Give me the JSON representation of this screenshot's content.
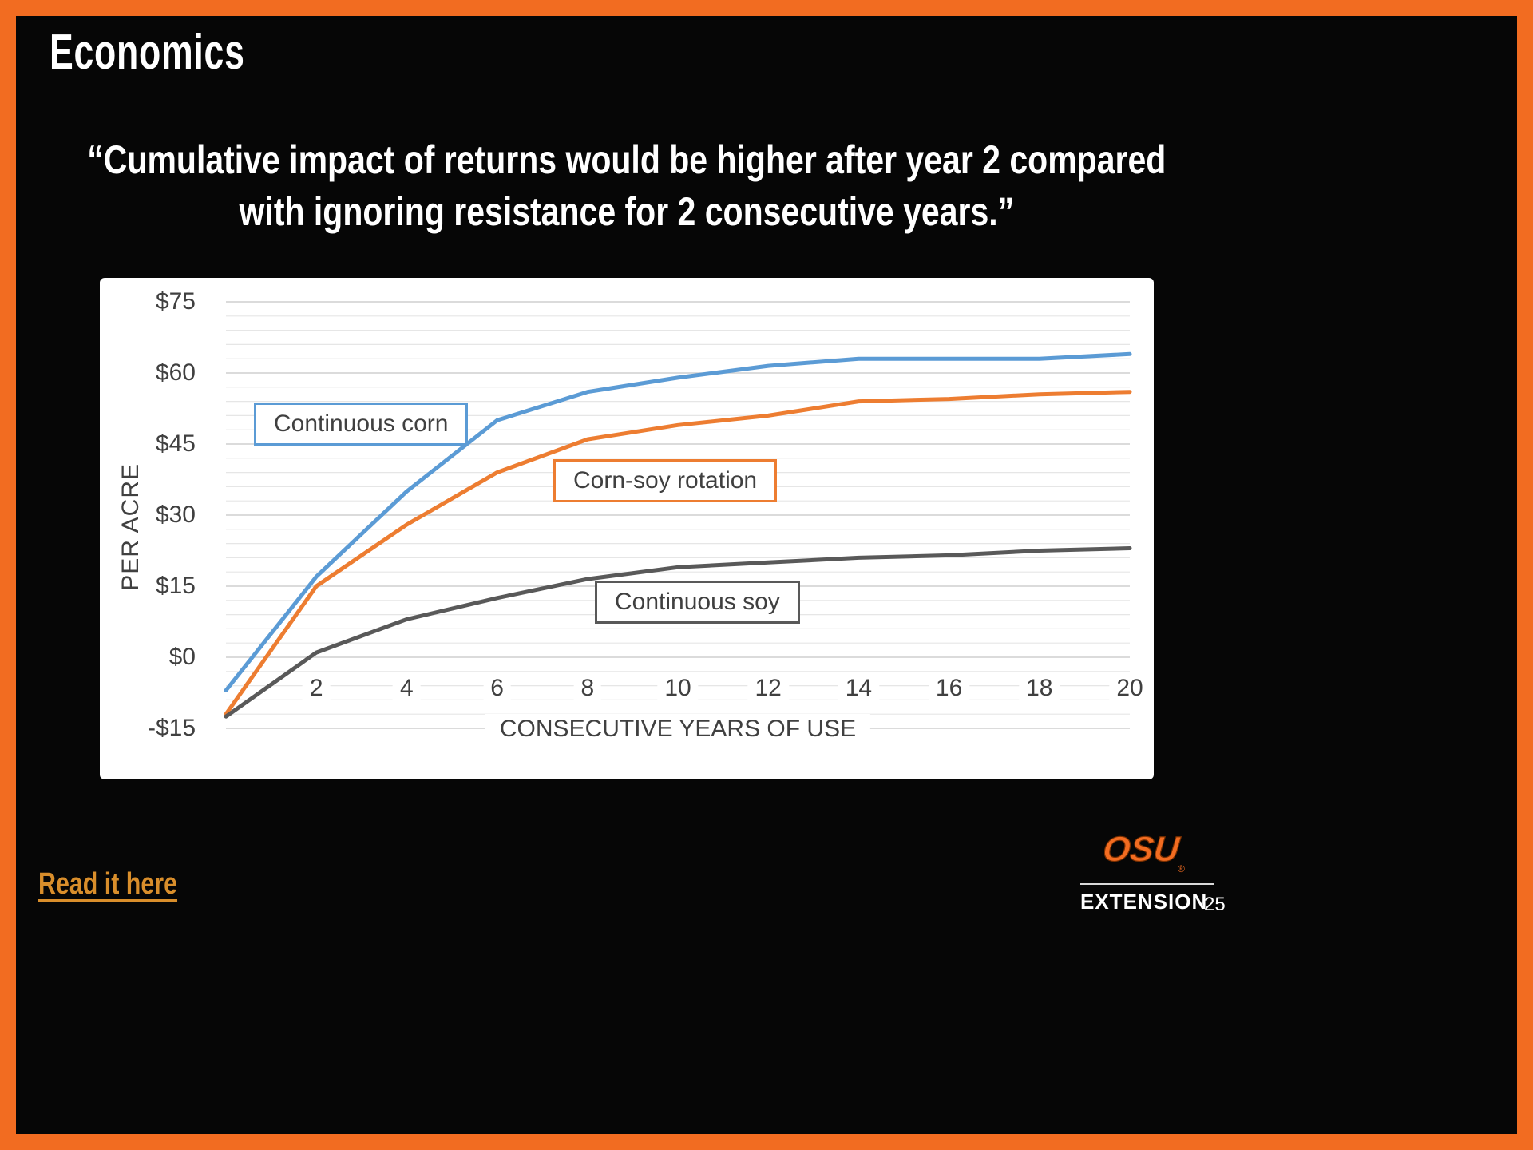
{
  "slide": {
    "title": "Economics",
    "quote": {
      "line1": "“Cumulative impact of returns would be higher after year 2 compared",
      "line2": "with ignoring resistance for 2 consecutive years.”"
    },
    "link_label": "Read it here",
    "footer": {
      "logo_text": "OSU",
      "org_label": "EXTENSION",
      "page_number": "25"
    }
  },
  "colors": {
    "border_orange": "#F26C21",
    "link_orange": "#D98E2B",
    "axis_text": "#404040",
    "gridline_major": "#CFCFCF",
    "gridline_minor": "#E6E6E6",
    "series_corn_blue": "#5B9BD5",
    "series_rotation_orange": "#ED7D31",
    "series_soy_gray": "#595959"
  },
  "chart_data": {
    "type": "line",
    "title": "",
    "xlabel": "CONSECUTIVE YEARS OF USE",
    "ylabel": "PER ACRE",
    "xlim": [
      0,
      20
    ],
    "ylim": [
      -15,
      75
    ],
    "grid": true,
    "legend_position": "boxed-labels-inside-plot",
    "x": [
      0,
      2,
      4,
      6,
      8,
      10,
      12,
      14,
      16,
      18,
      20
    ],
    "x_ticks": [
      2,
      4,
      6,
      8,
      10,
      12,
      14,
      16,
      18,
      20
    ],
    "y_ticks": [
      "$75",
      "$60",
      "$45",
      "$30",
      "$15",
      "$0",
      "-$15"
    ],
    "y_tick_values": [
      75,
      60,
      45,
      30,
      15,
      0,
      -15
    ],
    "series": [
      {
        "name": "Continuous corn",
        "color": "#5B9BD5",
        "values": [
          -7,
          17,
          35,
          50,
          56,
          59,
          61.5,
          63,
          63,
          63,
          64
        ]
      },
      {
        "name": "Corn-soy rotation",
        "color": "#ED7D31",
        "values": [
          -12,
          15,
          28,
          39,
          46,
          49,
          51,
          54,
          54.5,
          55.5,
          56
        ]
      },
      {
        "name": "Continuous soy",
        "color": "#595959",
        "values": [
          -12.5,
          1,
          8,
          12.5,
          16.5,
          19,
          20,
          21,
          21.5,
          22.5,
          23
        ]
      }
    ]
  }
}
